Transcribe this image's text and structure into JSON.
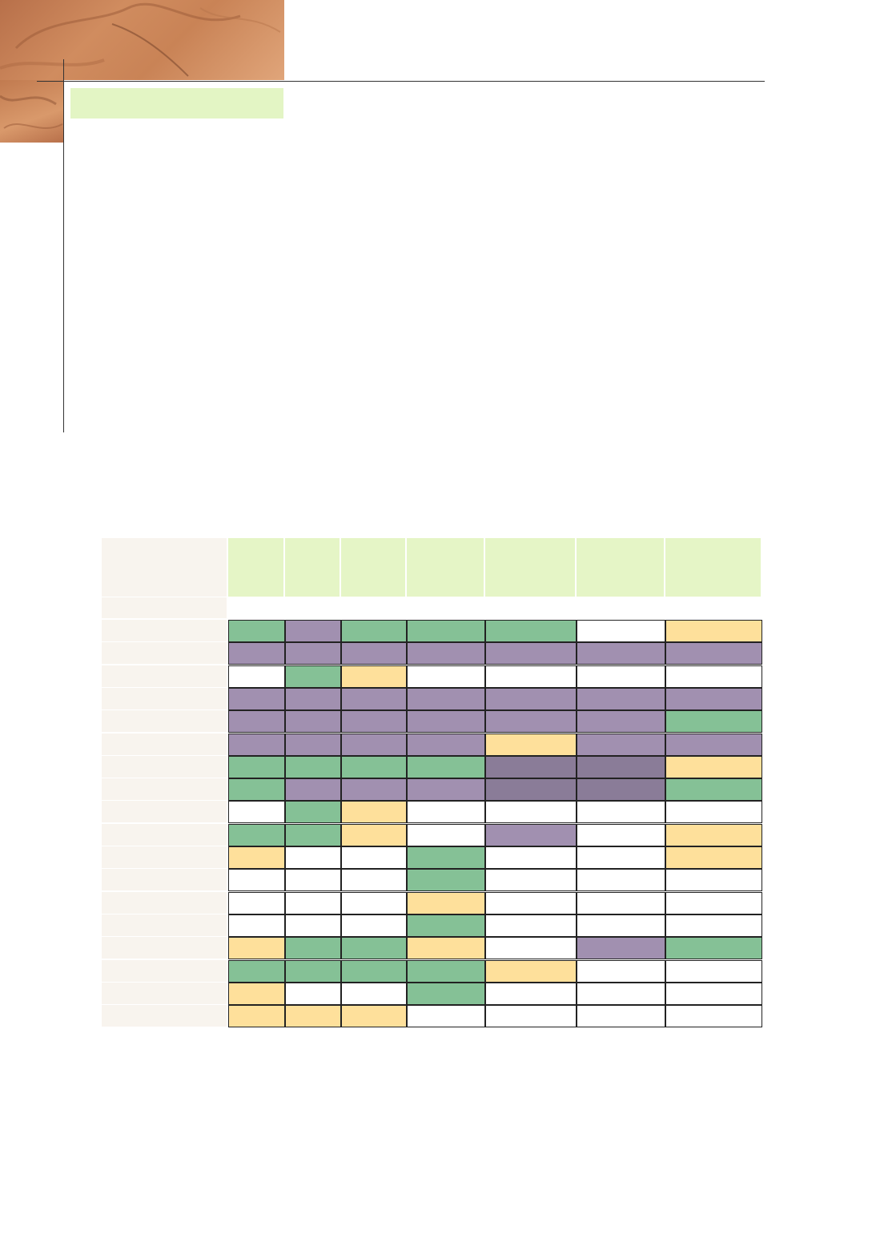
{
  "legend_colors": {
    "green": "#85c196",
    "purple": "#a190b0",
    "dark": "#8a7c98",
    "yellow": "#fee09b",
    "white": "#ffffff"
  },
  "header_colors": {
    "heading_box": "#e3f5c4",
    "column_header": "#e5f5c6",
    "row_label": "#f8f4ee"
  },
  "table": {
    "rows": [
      [
        "green",
        "purple",
        "green",
        "green",
        "green",
        "white",
        "yellow"
      ],
      [
        "purple",
        "purple",
        "purple",
        "purple",
        "purple",
        "purple",
        "purple"
      ],
      [
        "white",
        "green",
        "yellow",
        "white",
        "white",
        "white",
        "white"
      ],
      [
        "purple",
        "purple",
        "purple",
        "purple",
        "purple",
        "purple",
        "purple"
      ],
      [
        "purple",
        "purple",
        "purple",
        "purple",
        "purple",
        "purple",
        "green"
      ],
      [
        "purple",
        "purple",
        "purple",
        "purple",
        "yellow",
        "purple",
        "purple"
      ],
      [
        "green",
        "green",
        "green",
        "green",
        "dark",
        "dark",
        "yellow"
      ],
      [
        "green",
        "purple",
        "purple",
        "purple",
        "dark",
        "dark",
        "green"
      ],
      [
        "white",
        "green",
        "yellow",
        "white",
        "white",
        "white",
        "white"
      ],
      [
        "green",
        "green",
        "yellow",
        "white",
        "purple",
        "white",
        "yellow"
      ],
      [
        "yellow",
        "white",
        "white",
        "green",
        "white",
        "white",
        "yellow"
      ],
      [
        "white",
        "white",
        "white",
        "green",
        "white",
        "white",
        "white"
      ],
      [
        "white",
        "white",
        "white",
        "yellow",
        "white",
        "white",
        "white"
      ],
      [
        "white",
        "white",
        "white",
        "green",
        "white",
        "white",
        "white"
      ],
      [
        "yellow",
        "green",
        "green",
        "yellow",
        "white",
        "purple",
        "green"
      ],
      [
        "green",
        "green",
        "green",
        "green",
        "yellow",
        "white",
        "white"
      ],
      [
        "yellow",
        "white",
        "white",
        "green",
        "white",
        "white",
        "white"
      ],
      [
        "yellow",
        "yellow",
        "yellow",
        "white",
        "white",
        "white",
        "white"
      ]
    ]
  }
}
